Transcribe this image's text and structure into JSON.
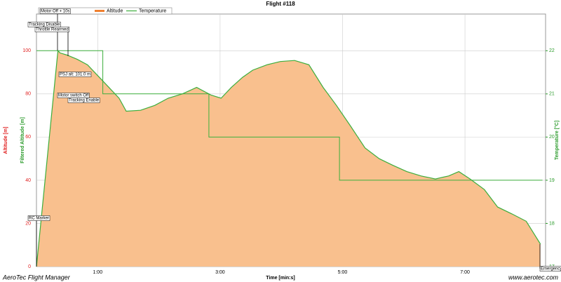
{
  "chart_data": {
    "type": "area",
    "title": "Flight #118",
    "xlabel": "Time [min:s]",
    "ylabel": "Altitude [m]",
    "ylabel_inner": "Filtered Altitude [m]",
    "y2label": "Temperature [°C]",
    "footer_left": "AeroTec Flight Manager",
    "footer_right": "www.aerotec.com",
    "xlim": [
      0,
      499
    ],
    "xticks": [
      {
        "value": 60,
        "label": "1:00"
      },
      {
        "value": 180,
        "label": "3:00"
      },
      {
        "value": 300,
        "label": "5:00"
      },
      {
        "value": 420,
        "label": "7:00"
      }
    ],
    "ylim": [
      0,
      117
    ],
    "yticks": [
      0,
      20,
      40,
      60,
      80,
      100
    ],
    "y2lim": [
      17,
      22.85
    ],
    "y2ticks": [
      17,
      18,
      19,
      20,
      21,
      22
    ],
    "grid": true,
    "series": [
      {
        "name": "Altitude",
        "color": "#f9c08e",
        "edge_color": "#3cae3c",
        "x": [
          0,
          21,
          23,
          30,
          40,
          50,
          61,
          71,
          81,
          88,
          102,
          116,
          129,
          143,
          157,
          171,
          181,
          191,
          202,
          212,
          226,
          239,
          253,
          267,
          281,
          294,
          308,
          322,
          336,
          349,
          363,
          377,
          391,
          404,
          414,
          425,
          439,
          452,
          466,
          480,
          494
        ],
        "values": [
          0,
          100,
          99,
          98,
          96,
          93.5,
          88,
          83,
          78,
          72,
          72.4,
          74.7,
          78,
          80,
          83,
          79.5,
          78,
          83,
          87.7,
          91,
          93.5,
          95,
          95.5,
          93.5,
          83,
          74.7,
          65,
          55,
          50,
          47,
          44,
          42,
          40.6,
          42,
          44,
          40.6,
          35.7,
          27.6,
          24.4,
          21,
          10.4
        ]
      },
      {
        "name": "Temperature",
        "color": "#3cae3c",
        "axis": "y2",
        "x": [
          0,
          65,
          65,
          169,
          169,
          297,
          297,
          496
        ],
        "values": [
          22,
          22,
          21,
          21,
          20,
          20,
          19,
          19
        ]
      }
    ],
    "annotations": [
      "Motor Off + 10s",
      "Tracking Disable",
      "Throttle Rearmed",
      "PSJ alt: 101.0 m",
      "Motor switch Off",
      "Tracking Enable",
      "RC Marker",
      "Emergency"
    ]
  }
}
